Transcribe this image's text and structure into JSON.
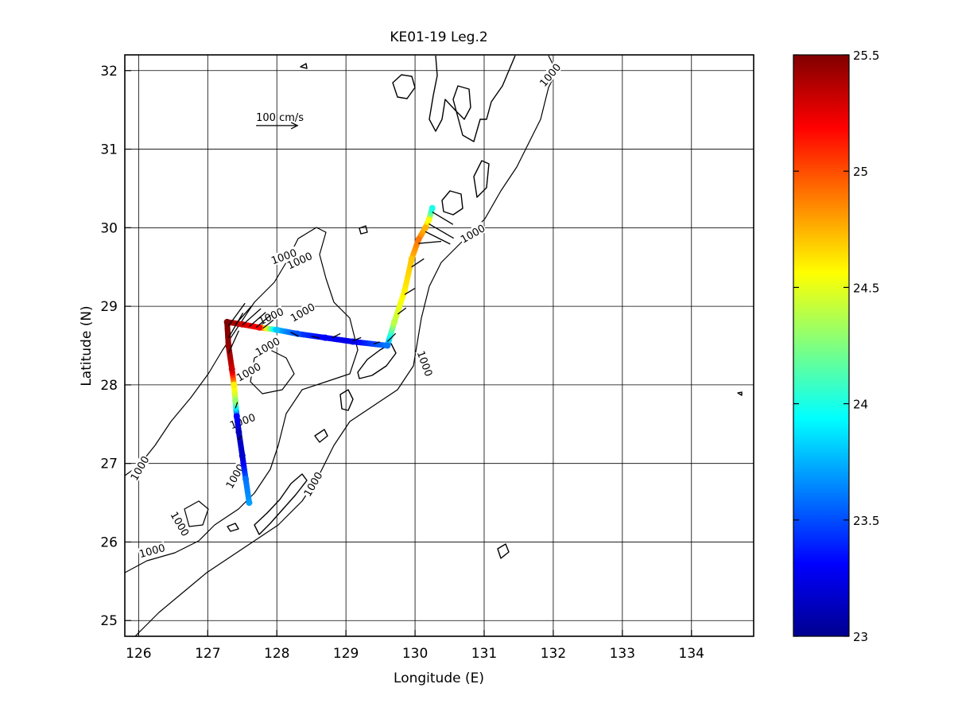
{
  "chart_data": {
    "type": "scatter",
    "title": "KE01-19 Leg.2",
    "xlabel": "Longitude (E)",
    "ylabel": "Latitude (N)",
    "xlim": [
      125.8,
      134.9
    ],
    "ylim": [
      24.8,
      32.2
    ],
    "xticks": [
      126,
      127,
      128,
      129,
      130,
      131,
      132,
      133,
      134
    ],
    "yticks": [
      25,
      26,
      27,
      28,
      29,
      30,
      31,
      32
    ],
    "grid": true,
    "colorbar": {
      "min": 23,
      "max": 25.5,
      "ticks": [
        23,
        23.5,
        24,
        24.5,
        25,
        25.5
      ],
      "colormap": "jet"
    },
    "contour_label": "1000",
    "scale_arrow_label": "100 cm/s",
    "track": [
      {
        "lon": 127.6,
        "lat": 26.5,
        "value": 23.7
      },
      {
        "lon": 127.55,
        "lat": 26.8,
        "value": 23.6
      },
      {
        "lon": 127.5,
        "lat": 27.1,
        "value": 23.2
      },
      {
        "lon": 127.45,
        "lat": 27.4,
        "value": 23.15
      },
      {
        "lon": 127.42,
        "lat": 27.6,
        "value": 23.3
      },
      {
        "lon": 127.4,
        "lat": 27.8,
        "value": 24.3
      },
      {
        "lon": 127.38,
        "lat": 28.0,
        "value": 24.6
      },
      {
        "lon": 127.35,
        "lat": 28.2,
        "value": 25.3
      },
      {
        "lon": 127.3,
        "lat": 28.5,
        "value": 25.45
      },
      {
        "lon": 127.28,
        "lat": 28.8,
        "value": 25.5
      },
      {
        "lon": 127.5,
        "lat": 28.77,
        "value": 25.3
      },
      {
        "lon": 127.75,
        "lat": 28.73,
        "value": 25.2
      },
      {
        "lon": 128.0,
        "lat": 28.7,
        "value": 23.8
      },
      {
        "lon": 128.3,
        "lat": 28.65,
        "value": 23.5
      },
      {
        "lon": 128.7,
        "lat": 28.6,
        "value": 23.3
      },
      {
        "lon": 129.1,
        "lat": 28.55,
        "value": 23.25
      },
      {
        "lon": 129.6,
        "lat": 28.5,
        "value": 23.6
      },
      {
        "lon": 129.7,
        "lat": 28.8,
        "value": 24.4
      },
      {
        "lon": 129.85,
        "lat": 29.2,
        "value": 24.6
      },
      {
        "lon": 129.95,
        "lat": 29.6,
        "value": 24.7
      },
      {
        "lon": 130.05,
        "lat": 29.85,
        "value": 24.9
      },
      {
        "lon": 130.15,
        "lat": 30.0,
        "value": 24.75
      },
      {
        "lon": 130.2,
        "lat": 30.1,
        "value": 24.55
      },
      {
        "lon": 130.25,
        "lat": 30.25,
        "value": 24.0
      }
    ],
    "scale_arrow": {
      "lon": 127.7,
      "lat": 31.3,
      "u": 100,
      "v": 0
    },
    "vectors": [
      {
        "lon": 127.3,
        "lat": 28.4,
        "u": 25,
        "v": 55
      },
      {
        "lon": 127.3,
        "lat": 28.6,
        "u": 35,
        "v": 60
      },
      {
        "lon": 127.3,
        "lat": 28.75,
        "u": 40,
        "v": 55
      },
      {
        "lon": 127.4,
        "lat": 28.77,
        "u": 40,
        "v": 45
      },
      {
        "lon": 127.5,
        "lat": 28.76,
        "u": 45,
        "v": 40
      },
      {
        "lon": 127.6,
        "lat": 28.74,
        "u": 40,
        "v": 35
      },
      {
        "lon": 127.7,
        "lat": 28.73,
        "u": 35,
        "v": 30
      },
      {
        "lon": 127.8,
        "lat": 28.72,
        "u": 25,
        "v": 20
      },
      {
        "lon": 128.2,
        "lat": 28.67,
        "u": 20,
        "v": -10
      },
      {
        "lon": 128.5,
        "lat": 28.62,
        "u": 20,
        "v": -5
      },
      {
        "lon": 128.8,
        "lat": 28.6,
        "u": 20,
        "v": 10
      },
      {
        "lon": 129.1,
        "lat": 28.56,
        "u": 20,
        "v": 8
      },
      {
        "lon": 129.4,
        "lat": 28.52,
        "u": 15,
        "v": 5
      },
      {
        "lon": 129.6,
        "lat": 28.55,
        "u": 20,
        "v": 20
      },
      {
        "lon": 129.75,
        "lat": 28.9,
        "u": 20,
        "v": 15
      },
      {
        "lon": 129.85,
        "lat": 29.15,
        "u": 25,
        "v": 15
      },
      {
        "lon": 129.95,
        "lat": 29.5,
        "u": 30,
        "v": 20
      },
      {
        "lon": 130.05,
        "lat": 29.8,
        "u": 55,
        "v": 5
      },
      {
        "lon": 130.15,
        "lat": 29.95,
        "u": 60,
        "v": -30
      },
      {
        "lon": 130.2,
        "lat": 30.05,
        "u": 60,
        "v": -35
      },
      {
        "lon": 130.25,
        "lat": 30.2,
        "u": 50,
        "v": -30
      },
      {
        "lon": 127.4,
        "lat": 27.7,
        "u": 5,
        "v": 15
      },
      {
        "lon": 127.45,
        "lat": 27.3,
        "u": 5,
        "v": 10
      }
    ]
  }
}
